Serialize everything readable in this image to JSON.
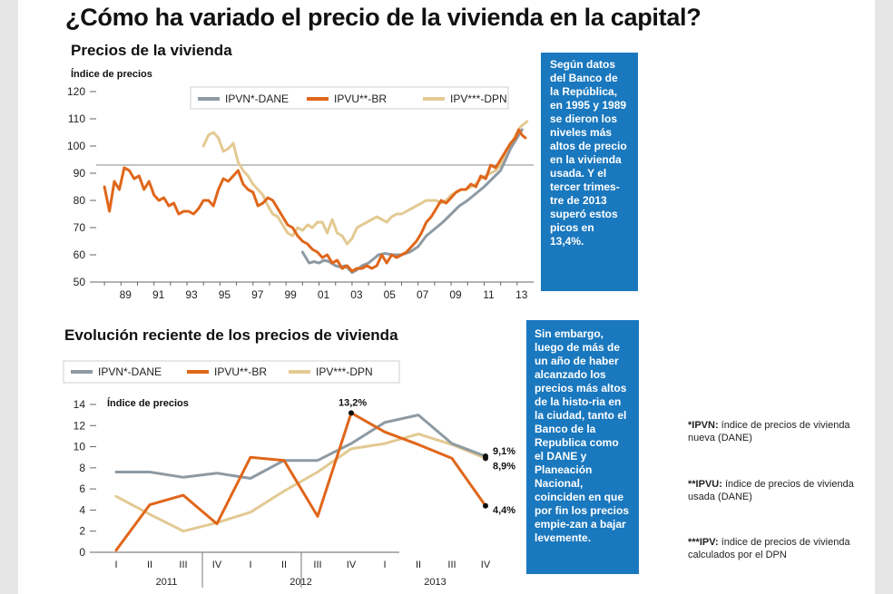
{
  "title": "¿Cómo ha variado el precio de la vivienda en la capital?",
  "charts": {
    "top": {
      "title": "Precios de la vivienda",
      "ylabel": "Índice de precios",
      "legend": [
        "IPVN*-DANE",
        "IPVU**-BR",
        "IPV***-DPN"
      ]
    },
    "bottom": {
      "title": "Evolución reciente de los precios de vivienda",
      "ylabel": "Índice de precios",
      "legend": [
        "IPVN*-DANE",
        "IPVU**-BR",
        "IPV***-DPN"
      ],
      "annotations": [
        "13,2%",
        "9,1%",
        "8,9%",
        "4,4%"
      ]
    }
  },
  "callouts": {
    "top": "Según datos del Banco de la República, en 1995 y 1989 se dieron los niveles más altos de precio en la vivienda usada. Y el tercer trimes-tre de 2013 superó estos picos en 13,4%.",
    "bottom": "Sin embargo, luego de más de un año de haber alcanzado los precios más altos de la histo-ria en la ciudad, tanto el Banco de la Republica como el DANE y Planeación Nacional, coinciden en que por fin los precios empie-zan a bajar levemente."
  },
  "footnotes": [
    {
      "term": "*IPVN:",
      "text": " índice de precios de vivienda nueva (DANE)"
    },
    {
      "term": "**IPVU:",
      "text": " índice de precios de vivienda usada (DANE)"
    },
    {
      "term": "***IPV:",
      "text": " índice de precios de vivienda calculados por el DPN"
    }
  ],
  "chart_data": [
    {
      "type": "line",
      "title": "Precios de la vivienda",
      "ylabel": "Índice de precios",
      "xlabel": "",
      "ylim": [
        50,
        120
      ],
      "yticks": [
        50,
        60,
        70,
        80,
        90,
        100,
        110,
        120
      ],
      "xlim": [
        1987.5,
        2014.0
      ],
      "xticks": [
        1989,
        1991,
        1993,
        1995,
        1997,
        1999,
        2001,
        2003,
        2005,
        2007,
        2009,
        2011,
        2013
      ],
      "xticklabels": [
        "89",
        "91",
        "93",
        "95",
        "97",
        "99",
        "01",
        "03",
        "05",
        "07",
        "09",
        "11",
        "13"
      ],
      "reference_line": 93,
      "legend_position": "top",
      "series": [
        {
          "name": "IPVN*-DANE",
          "color": "#8e9aa3",
          "x": [
            2000.0,
            2000.4,
            2000.7,
            2001.0,
            2001.3,
            2001.6,
            2002.0,
            2002.3,
            2002.6,
            2003.0,
            2003.3,
            2003.6,
            2004.0,
            2004.3,
            2004.6,
            2005.0,
            2005.5,
            2006.0,
            2006.5,
            2007.0,
            2007.5,
            2008.0,
            2008.5,
            2009.0,
            2009.5,
            2010.0,
            2010.5,
            2011.0,
            2011.5,
            2012.0,
            2012.3,
            2012.6,
            2013.0,
            2013.3
          ],
          "y": [
            61,
            57,
            57.5,
            57,
            58,
            57.5,
            56,
            55.5,
            56,
            53.5,
            54.5,
            56,
            57,
            58.5,
            60,
            60.5,
            60,
            60,
            61,
            63,
            67,
            69.5,
            72,
            75,
            78,
            80,
            82.5,
            85,
            88,
            91,
            95,
            99,
            103,
            106
          ]
        },
        {
          "name": "IPVU**-BR",
          "color": "#e0661a",
          "x": [
            1988.0,
            1988.3,
            1988.6,
            1988.9,
            1989.2,
            1989.5,
            1989.8,
            1990.1,
            1990.4,
            1990.7,
            1991.0,
            1991.3,
            1991.6,
            1991.9,
            1992.2,
            1992.5,
            1992.8,
            1993.1,
            1993.4,
            1993.7,
            1994.0,
            1994.3,
            1994.6,
            1994.9,
            1995.2,
            1995.5,
            1995.8,
            1996.1,
            1996.4,
            1996.7,
            1997.0,
            1997.3,
            1997.6,
            1997.9,
            1998.2,
            1998.5,
            1998.8,
            1999.1,
            1999.4,
            1999.7,
            2000.0,
            2000.3,
            2000.6,
            2000.9,
            2001.2,
            2001.5,
            2001.8,
            2002.1,
            2002.4,
            2002.7,
            2003.0,
            2003.3,
            2003.6,
            2003.9,
            2004.2,
            2004.5,
            2004.8,
            2005.1,
            2005.4,
            2005.7,
            2006.0,
            2006.3,
            2006.6,
            2006.9,
            2007.2,
            2007.5,
            2007.8,
            2008.1,
            2008.4,
            2008.7,
            2009.0,
            2009.3,
            2009.6,
            2009.9,
            2010.2,
            2010.5,
            2010.8,
            2011.1,
            2011.4,
            2011.7,
            2012.0,
            2012.3,
            2012.6,
            2012.9,
            2013.1,
            2013.3,
            2013.5
          ],
          "y": [
            85,
            76,
            87,
            84,
            92,
            91,
            88,
            89,
            84,
            87,
            82,
            80,
            81,
            78,
            79,
            75,
            76,
            76,
            75,
            77,
            80,
            80,
            78,
            84,
            88,
            87,
            89,
            91,
            86,
            84,
            83,
            78,
            79,
            81,
            80,
            77,
            74,
            71,
            70,
            67,
            65,
            64,
            62,
            61,
            59,
            60,
            57,
            58,
            55,
            56,
            54,
            55,
            55,
            56,
            55,
            56,
            60,
            57,
            60,
            59,
            60,
            61,
            63,
            65,
            68,
            72,
            74,
            77,
            80,
            79,
            81,
            83,
            84,
            84,
            86,
            85,
            89,
            88,
            93,
            92,
            95,
            98,
            101,
            103,
            106,
            104,
            103
          ]
        },
        {
          "name": "IPV***-DPN",
          "color": "#e3c992",
          "x": [
            1994.0,
            1994.3,
            1994.6,
            1994.9,
            1995.2,
            1995.5,
            1995.8,
            1996.1,
            1996.4,
            1996.7,
            1997.0,
            1997.3,
            1997.6,
            1997.9,
            1998.2,
            1998.5,
            1998.8,
            1999.1,
            1999.4,
            1999.7,
            2000.0,
            2000.3,
            2000.6,
            2000.9,
            2001.2,
            2001.5,
            2001.8,
            2002.1,
            2002.4,
            2002.7,
            2003.0,
            2003.3,
            2003.6,
            2003.9,
            2004.2,
            2004.5,
            2004.8,
            2005.1,
            2005.4,
            2005.7,
            2006.0,
            2006.3,
            2006.6,
            2006.9,
            2007.2,
            2007.5,
            2007.8,
            2008.1,
            2008.4,
            2008.7,
            2009.0,
            2009.3,
            2009.6,
            2009.9,
            2010.2,
            2010.5,
            2010.8,
            2011.1,
            2011.4,
            2011.7,
            2012.0,
            2012.3,
            2012.6,
            2012.9,
            2013.2,
            2013.6
          ],
          "y": [
            100,
            104,
            105,
            103,
            98,
            99,
            101,
            94,
            91,
            89,
            86,
            84,
            82,
            78,
            75,
            74,
            71,
            68,
            67,
            70,
            69,
            71,
            70,
            72,
            72,
            68,
            73,
            68,
            67,
            64,
            66,
            70,
            71,
            72,
            73,
            74,
            73,
            72,
            74,
            75,
            75,
            76,
            77,
            78,
            79,
            80,
            80,
            80,
            79,
            80,
            82,
            83,
            84,
            84,
            85,
            86,
            88,
            89,
            90,
            91,
            93,
            97,
            100,
            104,
            107,
            109
          ]
        }
      ]
    },
    {
      "type": "line",
      "title": "Evolución reciente de los precios de vivienda",
      "ylabel": "Índice de precios",
      "xlabel": "",
      "ylim": [
        0,
        14
      ],
      "yticks": [
        0,
        2,
        4,
        6,
        8,
        10,
        12,
        14
      ],
      "categories": [
        "I",
        "II",
        "III",
        "IV",
        "I",
        "II",
        "III",
        "IV",
        "I",
        "II",
        "III",
        "IV"
      ],
      "groups": [
        {
          "label": "2011",
          "span": 4
        },
        {
          "label": "2012",
          "span": 4
        },
        {
          "label": "2013",
          "span": 4
        }
      ],
      "legend_position": "top-left",
      "series": [
        {
          "name": "IPVN*-DANE",
          "color": "#8e9aa3",
          "values": [
            7.6,
            7.6,
            7.1,
            7.5,
            7.0,
            8.7,
            8.7,
            10.3,
            12.3,
            13.0,
            10.3,
            9.1
          ]
        },
        {
          "name": "IPVU**-BR",
          "color": "#e0661a",
          "values": [
            0.2,
            4.5,
            5.4,
            2.7,
            9.0,
            8.7,
            3.4,
            13.2,
            11.4,
            10.2,
            8.9,
            4.4
          ]
        },
        {
          "name": "IPV***-DPN",
          "color": "#e3c992",
          "values": [
            5.3,
            3.6,
            2.0,
            2.8,
            3.8,
            5.8,
            7.6,
            9.8,
            10.3,
            11.2,
            10.2,
            8.9
          ]
        }
      ],
      "data_labels": [
        {
          "text": "13,2%",
          "series": "IPVU**-BR",
          "category_index": 7
        },
        {
          "text": "9,1%",
          "series": "IPVN*-DANE",
          "category_index": 11
        },
        {
          "text": "8,9%",
          "series": "IPV***-DPN",
          "category_index": 11
        },
        {
          "text": "4,4%",
          "series": "IPVU**-BR",
          "category_index": 11
        }
      ]
    }
  ]
}
